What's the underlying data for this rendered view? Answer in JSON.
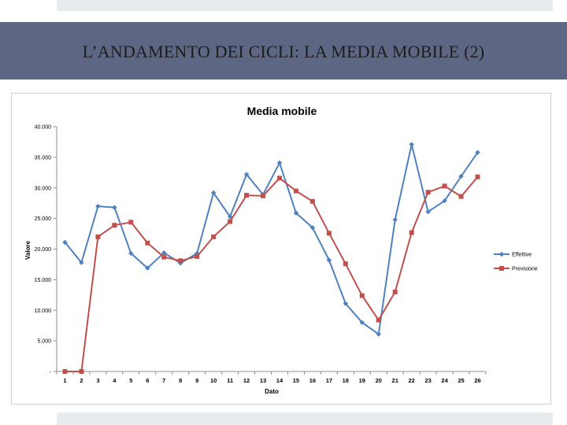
{
  "slide": {
    "title": "L’ANDAMENTO DEI CICLI: LA MEDIA MOBILE (2)"
  },
  "chart_data": {
    "type": "line",
    "title": "Media mobile",
    "xlabel": "Dato",
    "ylabel": "Valore",
    "ylim": [
      0,
      40000
    ],
    "yticks": [
      0,
      5000,
      10000,
      15000,
      20000,
      25000,
      30000,
      35000,
      40000
    ],
    "ytick_labels": [
      "-",
      "5.000",
      "10.000",
      "15.000",
      "20.000",
      "25.000",
      "30.000",
      "35.000",
      "40.000"
    ],
    "x": [
      1,
      2,
      3,
      4,
      5,
      6,
      7,
      8,
      9,
      10,
      11,
      12,
      13,
      14,
      15,
      16,
      17,
      18,
      19,
      20,
      21,
      22,
      23,
      24,
      25,
      26
    ],
    "grid": false,
    "legend": "right",
    "series": [
      {
        "name": "Effettive",
        "color": "#4f81bd",
        "marker": "diamond",
        "values": [
          21100,
          17800,
          27000,
          26800,
          19300,
          16900,
          19400,
          17700,
          19300,
          29200,
          25300,
          32200,
          28900,
          34100,
          25900,
          23500,
          18200,
          11100,
          8000,
          6100,
          24800,
          37100,
          26100,
          27900,
          31900,
          35800
        ]
      },
      {
        "name": "Previsione",
        "color": "#c0504d",
        "marker": "square",
        "values": [
          0,
          0,
          22000,
          23900,
          24400,
          21000,
          18700,
          18100,
          18800,
          22000,
          24500,
          28800,
          28700,
          31600,
          29500,
          27800,
          22600,
          17600,
          12400,
          8400,
          13000,
          22700,
          29300,
          30300,
          28600,
          31800
        ]
      }
    ]
  }
}
